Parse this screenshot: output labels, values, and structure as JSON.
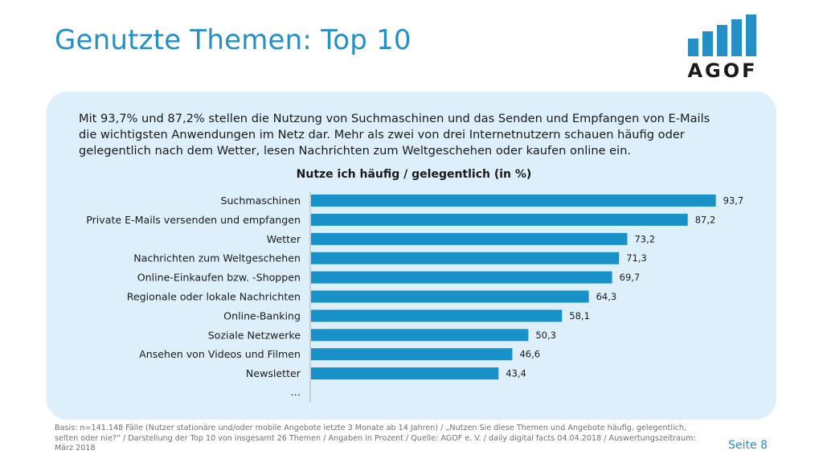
{
  "header": {
    "title": "Genutzte Themen: Top 10",
    "logo_text": "AGOF"
  },
  "intro_text": "Mit 93,7% und 87,2% stellen die Nutzung von Suchmaschinen und das Senden und Empfangen von E-Mails die wichtigsten Anwendungen im Netz dar. Mehr als zwei von drei Internetnutzern schauen häufig oder gelegentlich nach dem Wetter, lesen Nachrichten zum Weltgeschehen oder kaufen online ein.",
  "chart_data": {
    "type": "bar",
    "orientation": "horizontal",
    "title": "Nutze ich häufig / gelegentlich (in %)",
    "categories": [
      "Suchmaschinen",
      "Private E-Mails versenden und empfangen",
      "Wetter",
      "Nachrichten zum Weltgeschehen",
      "Online-Einkaufen bzw. -Shoppen",
      "Regionale oder lokale Nachrichten",
      "Online-Banking",
      "Soziale Netzwerke",
      "Ansehen von Videos und Filmen",
      "Newsletter"
    ],
    "values": [
      93.7,
      87.2,
      73.2,
      71.3,
      69.7,
      64.3,
      58.1,
      50.3,
      46.6,
      43.4
    ],
    "value_labels": [
      "93,7",
      "87,2",
      "73,2",
      "71,3",
      "69,7",
      "64,3",
      "58,1",
      "50,3",
      "46,6",
      "43,4"
    ],
    "trailing_label": "…",
    "xlim": [
      0,
      100
    ],
    "bar_color": "#1891c9",
    "grid": false
  },
  "footer": {
    "source": "Basis: n=141.148 Fälle (Nutzer stationäre und/oder mobile Angebote letzte 3 Monate ab 14 Jahren) / „Nutzen Sie diese Themen und Angebote häufig, gelegentlich, selten oder nie?“ / Darstellung der Top 10 von insgesamt 26 Themen / Angaben in Prozent / Quelle: AGOF e. V. / daily digital facts 04.04.2018 / Auswertungszeitraum: März 2018",
    "page": "Seite 8"
  },
  "colors": {
    "accent": "#2690c6",
    "panel": "#ddeffa",
    "bar": "#1891c9"
  }
}
